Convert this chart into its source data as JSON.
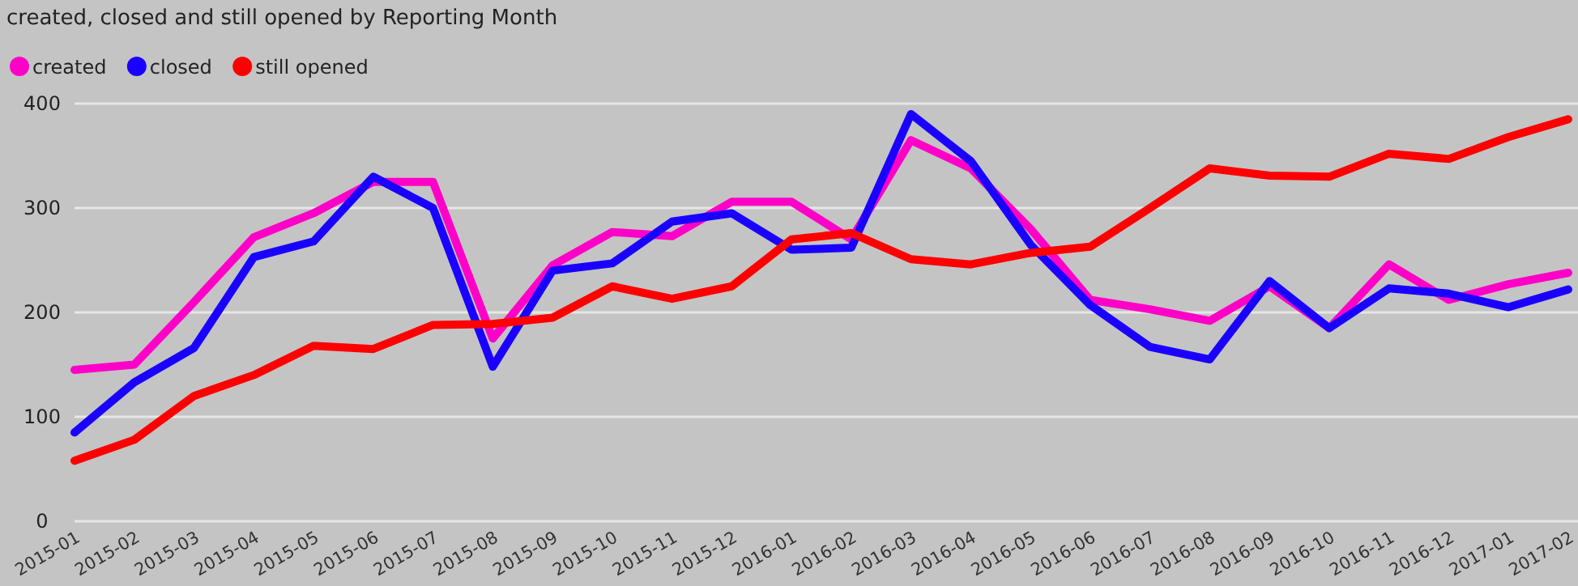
{
  "chart_data": {
    "type": "line",
    "title": "created, closed and still opened by Reporting Month",
    "categories": [
      "2015-01",
      "2015-02",
      "2015-03",
      "2015-04",
      "2015-05",
      "2015-06",
      "2015-07",
      "2015-08",
      "2015-09",
      "2015-10",
      "2015-11",
      "2015-12",
      "2016-01",
      "2016-02",
      "2016-03",
      "2016-04",
      "2016-05",
      "2016-06",
      "2016-07",
      "2016-08",
      "2016-09",
      "2016-10",
      "2016-11",
      "2016-12",
      "2017-01",
      "2017-02"
    ],
    "series": [
      {
        "name": "created",
        "color": "#ff00c8",
        "values": [
          145,
          150,
          210,
          272,
          295,
          325,
          325,
          175,
          245,
          277,
          273,
          306,
          306,
          270,
          365,
          338,
          280,
          212,
          203,
          192,
          225,
          185,
          246,
          212,
          227,
          238
        ]
      },
      {
        "name": "closed",
        "color": "#1a00ff",
        "values": [
          85,
          133,
          166,
          253,
          268,
          330,
          300,
          148,
          240,
          247,
          287,
          295,
          260,
          262,
          390,
          345,
          265,
          207,
          167,
          155,
          230,
          185,
          223,
          218,
          205,
          222
        ]
      },
      {
        "name": "still opened",
        "color": "#ff0000",
        "values": [
          58,
          78,
          120,
          140,
          168,
          165,
          188,
          189,
          195,
          225,
          213,
          225,
          270,
          276,
          251,
          246,
          257,
          263,
          300,
          338,
          331,
          330,
          352,
          347,
          368,
          385
        ]
      }
    ],
    "ylim": [
      0,
      400
    ],
    "yticks": [
      0,
      100,
      200,
      300,
      400
    ],
    "grid": "y",
    "legend": "top left",
    "marker": "none",
    "line_style": "solid"
  }
}
